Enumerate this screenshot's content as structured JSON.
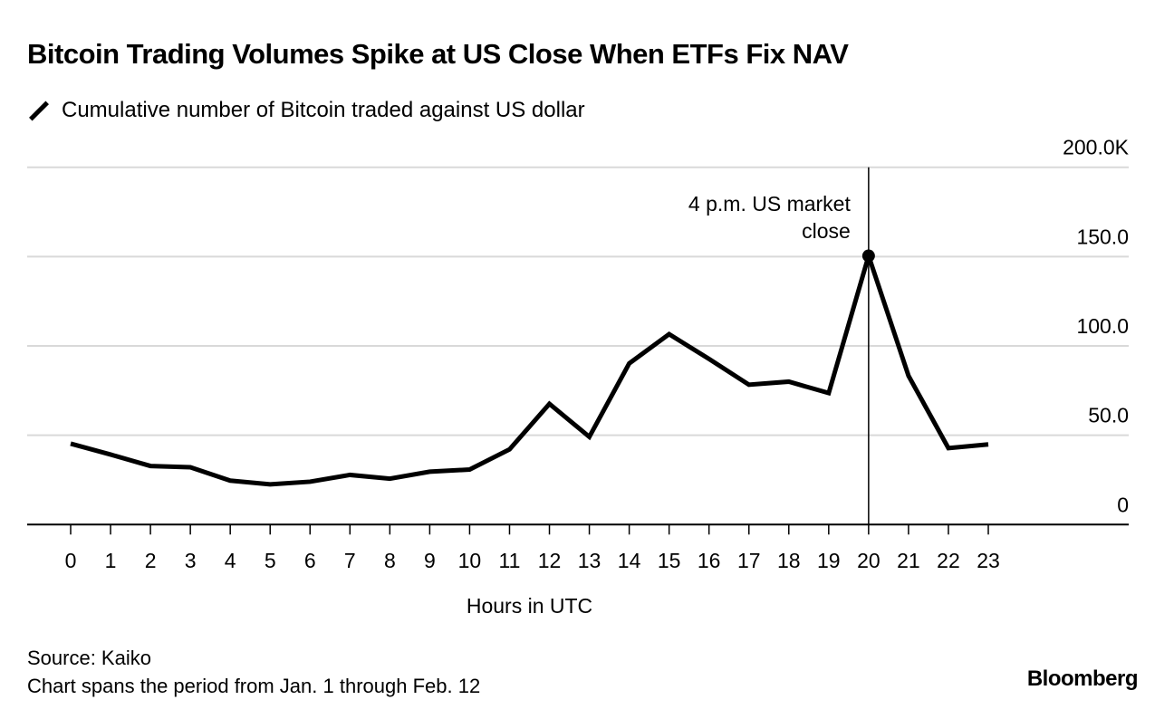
{
  "title": "Bitcoin Trading Volumes Spike at US Close When ETFs Fix NAV",
  "legend_label": "Cumulative number of Bitcoin traded against US dollar",
  "source": "Source: Kaiko",
  "note": "Chart spans the period from Jan. 1 through Feb. 12",
  "logo": "Bloomberg",
  "chart_data": {
    "type": "line",
    "title": "Bitcoin Trading Volumes Spike at US Close When ETFs Fix NAV",
    "xlabel": "Hours in UTC",
    "ylabel": "",
    "x": [
      0,
      1,
      2,
      3,
      4,
      5,
      6,
      7,
      8,
      9,
      10,
      11,
      12,
      13,
      14,
      15,
      16,
      17,
      18,
      19,
      20,
      21,
      22,
      23
    ],
    "series": [
      {
        "name": "Cumulative number of Bitcoin traded against US dollar",
        "values": [
          45.3,
          39.2,
          32.8,
          32.1,
          24.6,
          22.5,
          24.0,
          27.8,
          25.7,
          29.6,
          30.8,
          42.1,
          67.6,
          49.1,
          90.2,
          106.6,
          92.7,
          78.3,
          80.0,
          73.6,
          150.4,
          83.3,
          42.8,
          44.9
        ],
        "color": "#000000"
      }
    ],
    "ylim": [
      0,
      200
    ],
    "yticks": [
      0,
      50,
      100,
      150,
      200
    ],
    "ytick_labels": [
      "0",
      "50.0",
      "100.0",
      "150.0",
      "200.0K"
    ],
    "xtick_labels": [
      "0",
      "1",
      "2",
      "3",
      "4",
      "5",
      "6",
      "7",
      "8",
      "9",
      "10",
      "11",
      "12",
      "13",
      "14",
      "15",
      "16",
      "17",
      "18",
      "19",
      "20",
      "21",
      "22",
      "23"
    ],
    "grid": true,
    "yaxis_side": "right",
    "annotation": {
      "x": 20,
      "line1": "4 p.m. US market",
      "line2": "close"
    }
  }
}
